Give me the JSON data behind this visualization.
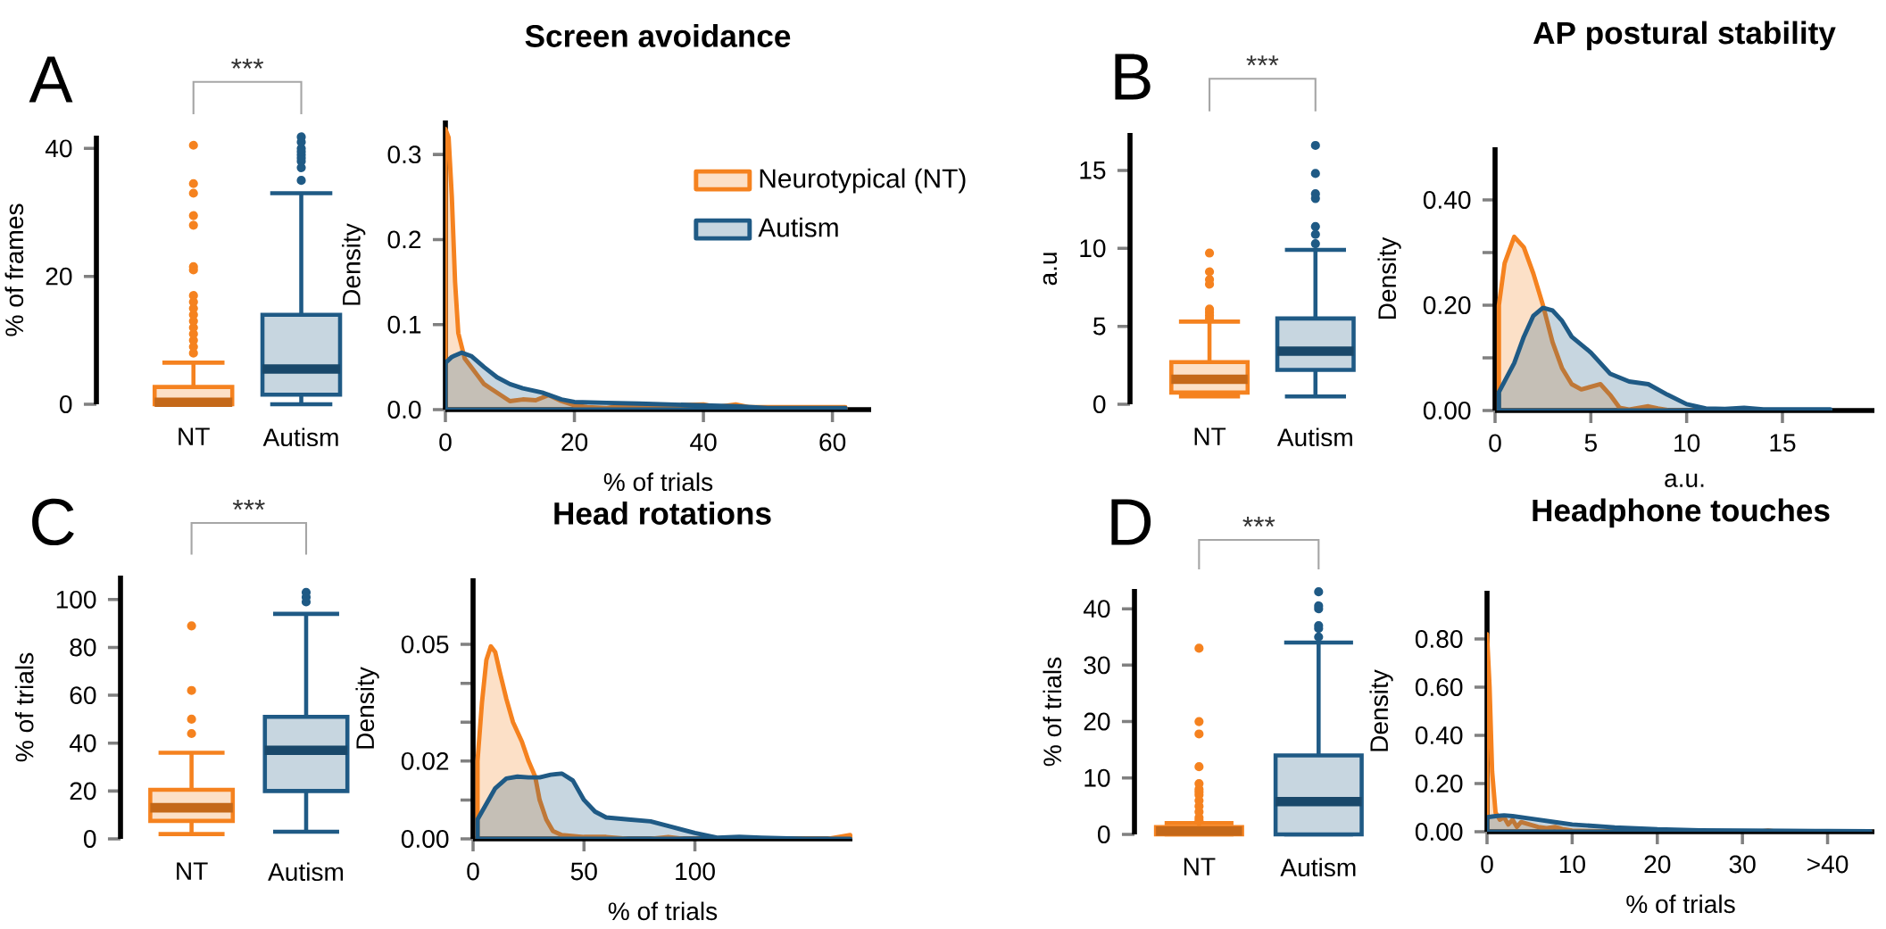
{
  "chart_data": [
    {
      "type": "box",
      "ylabel": "% of frames",
      "categories": [
        "NT",
        "Autism"
      ],
      "colors": [
        "#f5821f",
        "#1f5a85"
      ],
      "boxes": [
        {
          "low": 0,
          "q1": 0,
          "median": 0.3,
          "q3": 2.7,
          "high": 6.5,
          "outliers": [
            8,
            9,
            10,
            11,
            12,
            13,
            14,
            15,
            16,
            17,
            21,
            21.5,
            28,
            29.5,
            33,
            34.5,
            40.5
          ]
        },
        {
          "low": 0,
          "q1": 1.5,
          "median": 5.5,
          "q3": 14,
          "high": 33,
          "outliers": [
            35,
            37,
            38,
            38.5,
            39,
            39.5,
            40,
            41,
            41.8
          ]
        }
      ],
      "ylim": [
        0,
        42
      ],
      "yticks": [
        0,
        20,
        40
      ],
      "annotations": [
        "A",
        "***"
      ]
    },
    {
      "type": "area",
      "title": "Screen avoidance",
      "xlabel": "% of trials",
      "ylabel": "Density",
      "legend": "top right",
      "xlim": [
        0,
        66
      ],
      "ylim": [
        0,
        0.34
      ],
      "xticks": [
        0,
        20,
        40,
        60
      ],
      "yticks": [
        {
          "value": 0,
          "label": "0.0"
        },
        0.1,
        0.2,
        0.3
      ],
      "series": [
        {
          "name": "Neurotypical (NT)",
          "color": "#f5821f",
          "x": [
            0,
            0.5,
            1,
            1.5,
            2,
            3,
            4,
            5,
            6,
            7,
            8,
            9,
            10,
            12,
            14,
            16,
            18,
            20,
            22,
            25,
            28,
            30,
            35,
            40,
            42,
            45,
            47,
            50,
            62
          ],
          "values": [
            0.33,
            0.32,
            0.25,
            0.15,
            0.09,
            0.06,
            0.05,
            0.04,
            0.03,
            0.025,
            0.02,
            0.015,
            0.01,
            0.012,
            0.011,
            0.017,
            0.01,
            0.005,
            0.003,
            0.002,
            0.005,
            0.004,
            0.005,
            0.006,
            0.003,
            0.006,
            0.003,
            0.003,
            0.003
          ]
        },
        {
          "name": "Autism",
          "color": "#1f5a85",
          "x": [
            0,
            1,
            2.5,
            4,
            6,
            8,
            10,
            12,
            15,
            18,
            20,
            25,
            30,
            40,
            45,
            50,
            55,
            62
          ],
          "values": [
            0.055,
            0.062,
            0.067,
            0.063,
            0.05,
            0.038,
            0.03,
            0.025,
            0.02,
            0.012,
            0.009,
            0.008,
            0.007,
            0.005,
            0.004,
            0.002,
            0.002,
            0.002
          ]
        }
      ]
    },
    {
      "type": "box",
      "ylabel": "a.u",
      "categories": [
        "NT",
        "Autism"
      ],
      "colors": [
        "#f5821f",
        "#1f5a85"
      ],
      "boxes": [
        {
          "low": 0.5,
          "q1": 0.75,
          "median": 1.6,
          "q3": 2.7,
          "high": 5.3,
          "outliers": [
            5.5,
            5.7,
            5.9,
            6.1,
            7.7,
            8.0,
            8.5,
            9.7
          ]
        },
        {
          "low": 0.5,
          "q1": 2.2,
          "median": 3.4,
          "q3": 5.5,
          "high": 9.9,
          "outliers": [
            10.3,
            10.9,
            11.4,
            13.2,
            13.5,
            14.8,
            16.6
          ]
        }
      ],
      "ylim": [
        0,
        17.4
      ],
      "yticks": [
        0,
        5,
        10,
        15
      ],
      "annotations": [
        "B",
        "***"
      ]
    },
    {
      "type": "area",
      "title": "AP postural stability",
      "xlabel": "a.u.",
      "ylabel": "Density",
      "xlim": [
        0,
        19.8
      ],
      "ylim": [
        0,
        0.5
      ],
      "xticks": [
        0,
        5,
        10,
        15
      ],
      "yticks": [
        {
          "value": 0,
          "label": "0.00"
        },
        {
          "value": 0.1,
          "label": null
        },
        {
          "value": 0.2,
          "label": "0.20"
        },
        {
          "value": 0.3,
          "label": null
        },
        {
          "value": 0.4,
          "label": "0.40"
        }
      ],
      "series": [
        {
          "color": "#f5821f",
          "x": [
            0.2,
            0.5,
            1,
            1.5,
            2,
            2.5,
            3,
            3.5,
            4,
            4.5,
            5,
            5.5,
            6,
            6.5,
            7,
            7.5,
            8,
            8.5,
            9,
            10,
            17.5
          ],
          "values": [
            0.2,
            0.28,
            0.33,
            0.31,
            0.26,
            0.2,
            0.13,
            0.08,
            0.05,
            0.04,
            0.045,
            0.05,
            0.03,
            0.005,
            0.002,
            0.005,
            0.008,
            0.004,
            0.001,
            0,
            0
          ]
        },
        {
          "color": "#1f5a85",
          "x": [
            0.2,
            1,
            1.5,
            2,
            2.5,
            3,
            3.5,
            4,
            5,
            6,
            7,
            8,
            9,
            10,
            11,
            12,
            13,
            14,
            16,
            17.5
          ],
          "values": [
            0.035,
            0.09,
            0.14,
            0.18,
            0.195,
            0.19,
            0.17,
            0.14,
            0.11,
            0.07,
            0.055,
            0.05,
            0.03,
            0.012,
            0.004,
            0.003,
            0.005,
            0.002,
            0.002,
            0.002
          ]
        }
      ]
    },
    {
      "type": "box",
      "ylabel": "% of trials",
      "categories": [
        "NT",
        "Autism"
      ],
      "colors": [
        "#f5821f",
        "#1f5a85"
      ],
      "boxes": [
        {
          "low": 2,
          "q1": 7.5,
          "median": 13,
          "q3": 20.5,
          "high": 36,
          "outliers": [
            44,
            50,
            62,
            89
          ]
        },
        {
          "low": 3,
          "q1": 20,
          "median": 37,
          "q3": 51,
          "high": 94,
          "outliers": [
            99,
            101,
            103
          ]
        }
      ],
      "ylim": [
        0,
        110
      ],
      "yticks": [
        0,
        20,
        40,
        60,
        80,
        100
      ],
      "annotations": [
        "C",
        "***"
      ]
    },
    {
      "type": "area",
      "title": "Head rotations",
      "xlabel": "% of trials",
      "ylabel": "Density",
      "xlim": [
        0,
        171
      ],
      "ylim": [
        0,
        0.067
      ],
      "xticks": [
        0,
        50,
        100
      ],
      "yticks": [
        {
          "value": 0,
          "label": "0.00"
        },
        {
          "value": 0.01,
          "label": null
        },
        0.02,
        {
          "value": 0.03,
          "label": null
        },
        {
          "value": 0.04,
          "label": null
        },
        0.05
      ],
      "series": [
        {
          "color": "#f5821f",
          "x": [
            2,
            4,
            6,
            8,
            10,
            12,
            15,
            18,
            22,
            25,
            28,
            30,
            33,
            36,
            40,
            50,
            60,
            70,
            80,
            88,
            95,
            120,
            160,
            170
          ],
          "values": [
            0.02,
            0.035,
            0.046,
            0.0495,
            0.048,
            0.043,
            0.036,
            0.03,
            0.025,
            0.02,
            0.016,
            0.01,
            0.005,
            0.002,
            0.001,
            0.0005,
            0.0005,
            0,
            0,
            0.0005,
            0,
            0,
            0,
            0.001
          ]
        },
        {
          "color": "#1f5a85",
          "x": [
            2,
            6,
            10,
            15,
            20,
            25,
            30,
            35,
            40,
            45,
            50,
            55,
            60,
            70,
            80,
            90,
            100,
            110,
            120,
            130,
            150,
            170
          ],
          "values": [
            0.005,
            0.009,
            0.013,
            0.0155,
            0.016,
            0.0158,
            0.0158,
            0.0165,
            0.0168,
            0.015,
            0.01,
            0.007,
            0.0055,
            0.005,
            0.0045,
            0.003,
            0.0015,
            0.0003,
            0.0005,
            0.0003,
            0,
            0
          ]
        }
      ]
    },
    {
      "type": "box",
      "ylabel": "% of trials",
      "categories": [
        "NT",
        "Autism"
      ],
      "colors": [
        "#f5821f",
        "#1f5a85"
      ],
      "boxes": [
        {
          "low": 0,
          "q1": 0,
          "median": 0.6,
          "q3": 1.3,
          "high": 2,
          "outliers": [
            2.5,
            3,
            4,
            5,
            6,
            7,
            7.5,
            8,
            9,
            12,
            17.8,
            20,
            33
          ]
        },
        {
          "low": 0,
          "q1": 0,
          "median": 5.8,
          "q3": 14,
          "high": 34,
          "outliers": [
            35,
            36.5,
            37,
            40,
            40.5,
            43
          ]
        }
      ],
      "ylim": [
        0,
        43.5
      ],
      "yticks": [
        0,
        10,
        20,
        30,
        40
      ],
      "annotations": [
        "D",
        "***"
      ]
    },
    {
      "type": "area",
      "title": "Headphone touches",
      "xlabel": "% of trials",
      "ylabel": "Density",
      "xlim": [
        0,
        45.5
      ],
      "ylim": [
        0,
        1.0
      ],
      "xticks": [
        0,
        10,
        20,
        30,
        {
          "value": 40,
          "label": ">40"
        }
      ],
      "yticks": [
        {
          "value": 0,
          "label": "0.00"
        },
        {
          "value": 0.2,
          "label": "0.20"
        },
        {
          "value": 0.4,
          "label": "0.40"
        },
        {
          "value": 0.6,
          "label": "0.60"
        },
        {
          "value": 0.8,
          "label": "0.80"
        }
      ],
      "series": [
        {
          "color": "#f5821f",
          "x": [
            0,
            0.3,
            0.6,
            1,
            1.5,
            2,
            2.5,
            3,
            3.5,
            4,
            5,
            6,
            7,
            8,
            9,
            10,
            12,
            15,
            20,
            25,
            32,
            33,
            34,
            45
          ],
          "values": [
            0.82,
            0.6,
            0.25,
            0.08,
            0.05,
            0.06,
            0.03,
            0.05,
            0.02,
            0.04,
            0.03,
            0.02,
            0.015,
            0.02,
            0.01,
            0.005,
            0.003,
            0.002,
            0.002,
            0,
            0,
            0.005,
            0,
            0
          ]
        },
        {
          "color": "#1f5a85",
          "x": [
            0,
            1,
            2,
            3,
            5,
            8,
            10,
            15,
            20,
            25,
            30,
            35,
            40,
            45
          ],
          "values": [
            0.06,
            0.065,
            0.068,
            0.065,
            0.055,
            0.04,
            0.03,
            0.018,
            0.01,
            0.006,
            0.005,
            0.004,
            0.003,
            0.002
          ]
        }
      ]
    }
  ]
}
